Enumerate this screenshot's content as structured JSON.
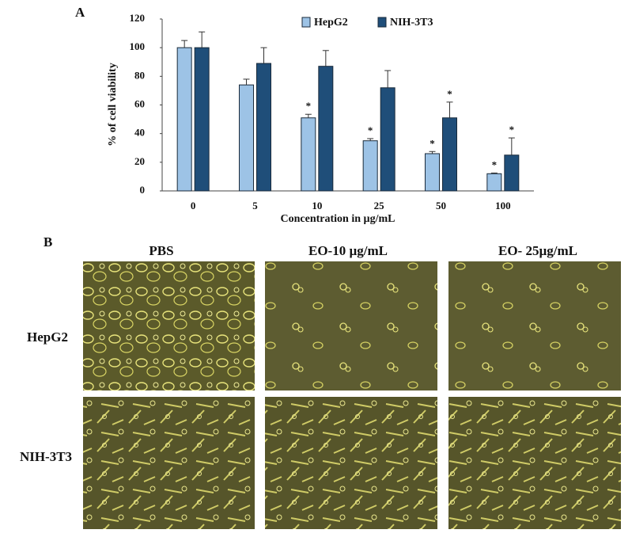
{
  "chart_data": {
    "type": "bar",
    "panel_label": "A",
    "xlabel": "Concentration  in µg/mL",
    "ylabel": "% of cell viability",
    "categories": [
      "0",
      "5",
      "10",
      "25",
      "50",
      "100"
    ],
    "series": [
      {
        "name": "HepG2",
        "color": "#9dc3e6",
        "values": [
          100,
          74,
          51,
          35,
          26,
          12
        ],
        "errors": [
          5,
          4,
          2.5,
          1.5,
          1.5,
          0.5
        ],
        "significance": [
          null,
          null,
          "*",
          "*",
          "*",
          "*"
        ]
      },
      {
        "name": "NIH-3T3",
        "color": "#1f4e79",
        "values": [
          100,
          89,
          87,
          72,
          51,
          25
        ],
        "errors": [
          11,
          11,
          11,
          12,
          11,
          12
        ],
        "significance": [
          null,
          null,
          null,
          null,
          "*",
          "*"
        ]
      }
    ],
    "ylim": [
      0,
      120
    ],
    "yticks": [
      0,
      20,
      40,
      60,
      80,
      100,
      120
    ],
    "grid": false,
    "legend": "top"
  },
  "panel_b": {
    "label": "B",
    "columns": [
      "PBS",
      "EO-10 µg/mL",
      "EO- 25µg/mL"
    ],
    "rows": [
      "HepG2",
      "NIH-3T3"
    ]
  }
}
